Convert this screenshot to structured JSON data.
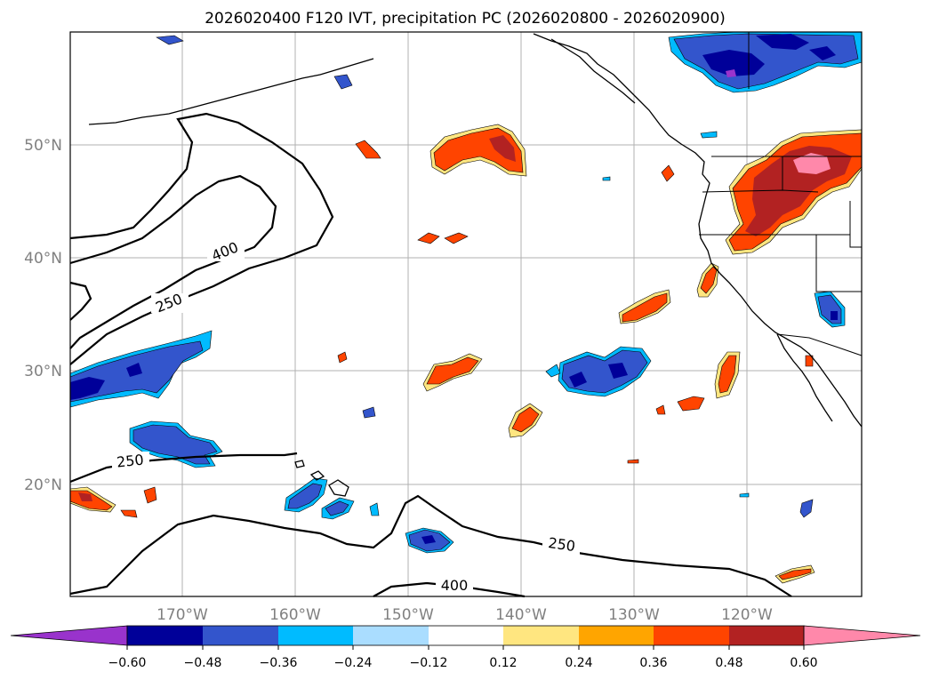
{
  "title": "2026020400 F120 IVT, precipitation PC (2026020800 - 2026020900)",
  "lat_labels": [
    "50°N",
    "40°N",
    "30°N",
    "20°N"
  ],
  "lon_labels": [
    "170°W",
    "160°W",
    "150°W",
    "140°W",
    "130°W",
    "120°W"
  ],
  "ivt_contour_labels": [
    "400",
    "250",
    "250",
    "250",
    "400"
  ],
  "colorbar": {
    "ticks": [
      "−0.60",
      "−0.48",
      "−0.36",
      "−0.24",
      "−0.12",
      "0.12",
      "0.24",
      "0.36",
      "0.48",
      "0.60"
    ],
    "colors": [
      "#9933cc",
      "#000099",
      "#3355cc",
      "#00bbff",
      "#aaddff",
      "#ffffff",
      "#ffe680",
      "#ffa500",
      "#ff4400",
      "#b22222",
      "#ff88aa"
    ]
  },
  "colors": {
    "neg_outer": "#00bbff",
    "neg_mid": "#3355cc",
    "neg_core": "#000099",
    "neg_extreme": "#9933cc",
    "pos_outer": "#ffe680",
    "pos_mid": "#ff4400",
    "pos_core": "#b22222",
    "pos_extreme": "#ff88aa"
  }
}
